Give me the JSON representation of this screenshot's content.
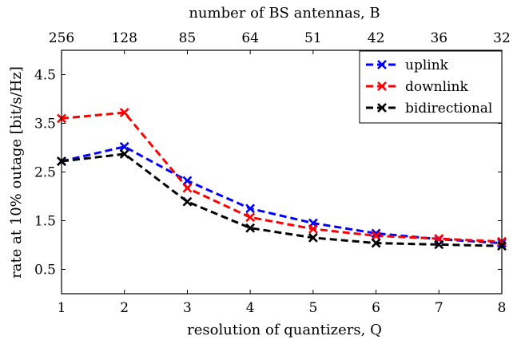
{
  "chart_data": {
    "type": "line",
    "title": "",
    "xlabel": "resolution of quantizers, Q",
    "ylabel": "rate at 10% outage [bit/s/Hz]",
    "top_xlabel": "number of BS antennas, B",
    "x": [
      1,
      2,
      3,
      4,
      5,
      6,
      7,
      8
    ],
    "top_x_ticks": [
      "256",
      "128",
      "85",
      "64",
      "51",
      "42",
      "36",
      "32"
    ],
    "xlim": [
      1,
      8
    ],
    "ylim": [
      0,
      5
    ],
    "x_ticks": [
      "1",
      "2",
      "3",
      "4",
      "5",
      "6",
      "7",
      "8"
    ],
    "y_ticks": [
      0.5,
      1.5,
      2.5,
      3.5,
      4.5
    ],
    "grid": false,
    "legend_position": "top-right",
    "series": [
      {
        "name": "uplink",
        "color": "#0000ff",
        "values": [
          2.72,
          3.02,
          2.32,
          1.75,
          1.45,
          1.24,
          1.12,
          1.04
        ]
      },
      {
        "name": "downlink",
        "color": "#ff0000",
        "values": [
          3.6,
          3.72,
          2.17,
          1.57,
          1.33,
          1.19,
          1.13,
          1.07
        ]
      },
      {
        "name": "bidirectional",
        "color": "#000000",
        "values": [
          2.72,
          2.87,
          1.89,
          1.35,
          1.15,
          1.04,
          1.01,
          0.98
        ]
      }
    ]
  }
}
